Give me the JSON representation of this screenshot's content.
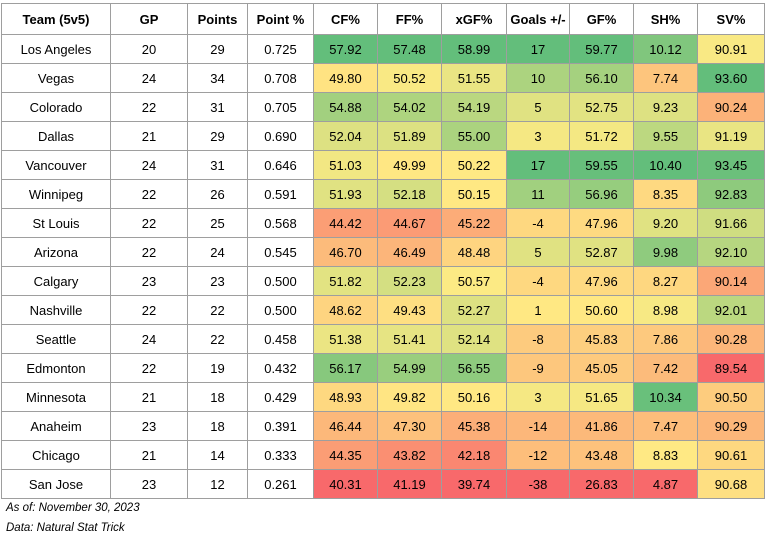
{
  "table": {
    "columns": [
      "Team (5v5)",
      "GP",
      "Points",
      "Point %",
      "CF%",
      "FF%",
      "xGF%",
      "Goals +/-",
      "GF%",
      "SH%",
      "SV%"
    ],
    "rows": [
      [
        "Los Angeles",
        "20",
        "29",
        "0.725",
        "57.92",
        "57.48",
        "58.99",
        "17",
        "59.77",
        "10.12",
        "90.91"
      ],
      [
        "Vegas",
        "24",
        "34",
        "0.708",
        "49.80",
        "50.52",
        "51.55",
        "10",
        "56.10",
        "7.74",
        "93.60"
      ],
      [
        "Colorado",
        "22",
        "31",
        "0.705",
        "54.88",
        "54.02",
        "54.19",
        "5",
        "52.75",
        "9.23",
        "90.24"
      ],
      [
        "Dallas",
        "21",
        "29",
        "0.690",
        "52.04",
        "51.89",
        "55.00",
        "3",
        "51.72",
        "9.55",
        "91.19"
      ],
      [
        "Vancouver",
        "24",
        "31",
        "0.646",
        "51.03",
        "49.99",
        "50.22",
        "17",
        "59.55",
        "10.40",
        "93.45"
      ],
      [
        "Winnipeg",
        "22",
        "26",
        "0.591",
        "51.93",
        "52.18",
        "50.15",
        "11",
        "56.96",
        "8.35",
        "92.83"
      ],
      [
        "St Louis",
        "22",
        "25",
        "0.568",
        "44.42",
        "44.67",
        "45.22",
        "-4",
        "47.96",
        "9.20",
        "91.66"
      ],
      [
        "Arizona",
        "22",
        "24",
        "0.545",
        "46.70",
        "46.49",
        "48.48",
        "5",
        "52.87",
        "9.98",
        "92.10"
      ],
      [
        "Calgary",
        "23",
        "23",
        "0.500",
        "51.82",
        "52.23",
        "50.57",
        "-4",
        "47.96",
        "8.27",
        "90.14"
      ],
      [
        "Nashville",
        "22",
        "22",
        "0.500",
        "48.62",
        "49.43",
        "52.27",
        "1",
        "50.60",
        "8.98",
        "92.01"
      ],
      [
        "Seattle",
        "24",
        "22",
        "0.458",
        "51.38",
        "51.41",
        "52.14",
        "-8",
        "45.83",
        "7.86",
        "90.28"
      ],
      [
        "Edmonton",
        "22",
        "19",
        "0.432",
        "56.17",
        "54.99",
        "56.55",
        "-9",
        "45.05",
        "7.42",
        "89.54"
      ],
      [
        "Minnesota",
        "21",
        "18",
        "0.429",
        "48.93",
        "49.82",
        "50.16",
        "3",
        "51.65",
        "10.34",
        "90.50"
      ],
      [
        "Anaheim",
        "23",
        "18",
        "0.391",
        "46.44",
        "47.30",
        "45.38",
        "-14",
        "41.86",
        "7.47",
        "90.29"
      ],
      [
        "Chicago",
        "21",
        "14",
        "0.333",
        "44.35",
        "43.82",
        "42.18",
        "-12",
        "43.48",
        "8.83",
        "90.61"
      ],
      [
        "San Jose",
        "23",
        "12",
        "0.261",
        "40.31",
        "41.19",
        "39.74",
        "-38",
        "26.83",
        "4.87",
        "90.68"
      ]
    ]
  },
  "notes": [
    "As of: November 30, 2023",
    "Data: Natural Stat Trick"
  ]
}
